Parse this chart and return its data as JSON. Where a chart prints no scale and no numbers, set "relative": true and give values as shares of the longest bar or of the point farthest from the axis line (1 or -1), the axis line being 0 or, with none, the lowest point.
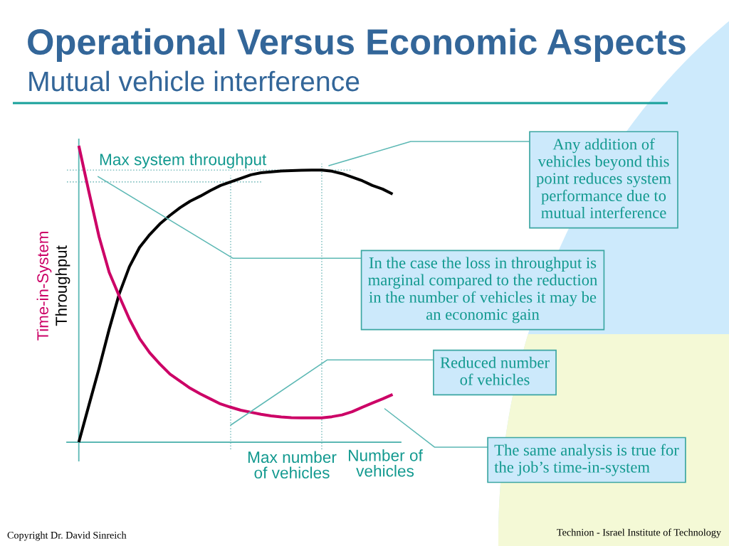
{
  "chart_data": {
    "type": "line",
    "title": "Operational Versus Economic Aspects",
    "subtitle": "Mutual vehicle interference",
    "xlabel": "Number of\nvehicles",
    "relative": true,
    "line_style": "solid",
    "categories": [
      null,
      null,
      null,
      null,
      null,
      null,
      null,
      null,
      null,
      null,
      null,
      null,
      null,
      null,
      null,
      null,
      null,
      null,
      null,
      null,
      null,
      null,
      null,
      null,
      null,
      null,
      null,
      null,
      null,
      null,
      null,
      null
    ],
    "series": [
      {
        "name": "Throughput",
        "color": "#000000",
        "values": [
          0.0,
          0.125,
          0.249,
          0.381,
          0.501,
          0.592,
          0.657,
          0.7,
          0.736,
          0.765,
          0.791,
          0.813,
          0.83,
          0.849,
          0.866,
          0.878,
          0.89,
          0.902,
          0.909,
          0.912,
          0.915,
          0.916,
          0.917,
          0.918,
          0.918,
          0.914,
          0.906,
          0.894,
          0.882,
          0.866,
          0.854,
          0.837
        ]
      },
      {
        "name": "Time-in-System",
        "color": "#cc0066",
        "values": [
          1.0,
          0.844,
          0.693,
          0.573,
          0.492,
          0.415,
          0.35,
          0.302,
          0.264,
          0.23,
          0.206,
          0.182,
          0.163,
          0.146,
          0.129,
          0.118,
          0.108,
          0.101,
          0.094,
          0.089,
          0.085,
          0.083,
          0.082,
          0.082,
          0.082,
          0.086,
          0.092,
          0.103,
          0.118,
          0.132,
          0.146,
          0.161
        ]
      }
    ],
    "ref_lines": [
      {
        "axis": "y",
        "value": 0.918,
        "label": "Max system throughput",
        "color": "#7fbfbf",
        "line_style": "dotted"
      },
      {
        "axis": "y",
        "value": 0.878,
        "color": "#7fbfbf",
        "line_style": "dotted"
      }
    ],
    "annotations": [
      "Any addition of\nvehicles beyond this\npoint reduces system\nperformance due to\nmutual interference",
      "In the case the loss in throughput is\nmarginal compared to the reduction\nin the number of vehicles it may be\nan economic gain",
      "Reduced number\nof vehicles",
      "The same analysis is true for\nthe job’s time-in-system",
      "Max number\nof vehicles",
      "Copyright Dr. David Sinreich",
      "Technion - Israel Institute of Technology"
    ]
  }
}
